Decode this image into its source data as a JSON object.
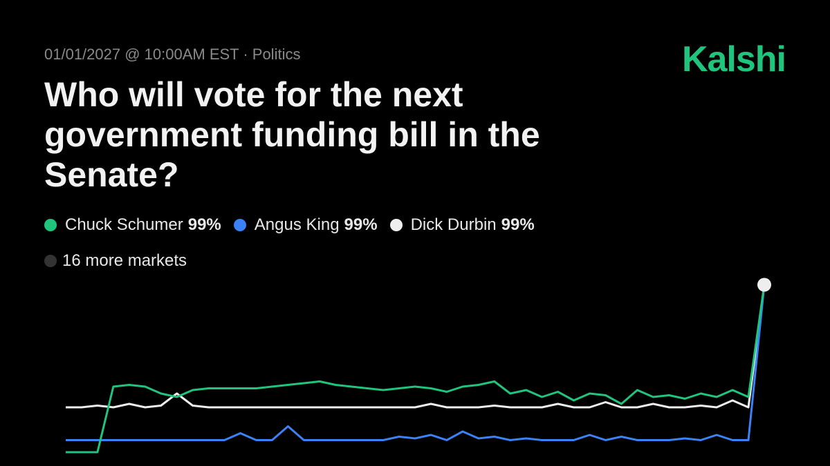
{
  "header": {
    "meta": "01/01/2027 @ 10:00AM EST · Politics",
    "logo": "Kalshi"
  },
  "chart_data": {
    "type": "line",
    "title": "Who will vote for the next government funding bill in the Senate?",
    "ylim": [
      0,
      100
    ],
    "series": [
      {
        "name": "Chuck Schumer",
        "color": "#20c47c",
        "values": [
          2,
          2,
          2,
          40,
          41,
          40,
          36,
          34,
          38,
          39,
          39,
          39,
          39,
          40,
          41,
          42,
          43,
          41,
          40,
          39,
          38,
          39,
          40,
          39,
          37,
          40,
          41,
          43,
          36,
          38,
          34,
          37,
          32,
          36,
          35,
          30,
          38,
          34,
          35,
          33,
          36,
          34,
          38,
          34,
          99
        ],
        "value_labels": [
          null,
          null,
          null,
          null,
          null,
          null,
          null,
          null,
          null,
          null,
          null,
          null,
          null,
          null,
          null,
          null,
          null,
          null,
          null,
          null,
          null,
          null,
          null,
          null,
          null,
          null,
          null,
          null,
          null,
          null,
          null,
          null,
          null,
          null,
          null,
          null,
          null,
          null,
          null,
          null,
          null,
          null,
          null,
          null,
          "99%"
        ]
      },
      {
        "name": "Angus King",
        "color": "#3b82f6",
        "values": [
          9,
          9,
          9,
          9,
          9,
          9,
          9,
          9,
          9,
          9,
          9,
          13,
          9,
          9,
          17,
          9,
          9,
          9,
          9,
          9,
          9,
          11,
          10,
          12,
          9,
          14,
          10,
          11,
          9,
          10,
          9,
          9,
          9,
          12,
          9,
          11,
          9,
          9,
          9,
          10,
          9,
          12,
          9,
          9,
          99
        ],
        "value_labels": [
          null,
          null,
          null,
          null,
          null,
          null,
          null,
          null,
          null,
          null,
          null,
          null,
          null,
          null,
          null,
          null,
          null,
          null,
          null,
          null,
          null,
          null,
          null,
          null,
          null,
          null,
          null,
          null,
          null,
          null,
          null,
          null,
          null,
          null,
          null,
          null,
          null,
          null,
          null,
          null,
          null,
          null,
          null,
          null,
          "99%"
        ]
      },
      {
        "name": "Dick Durbin",
        "color": "#eeeeee",
        "values": [
          28,
          28,
          29,
          28,
          30,
          28,
          29,
          36,
          29,
          28,
          28,
          28,
          28,
          28,
          28,
          28,
          28,
          28,
          28,
          28,
          28,
          28,
          28,
          30,
          28,
          28,
          28,
          29,
          28,
          28,
          28,
          30,
          28,
          28,
          31,
          28,
          28,
          30,
          28,
          28,
          29,
          28,
          32,
          28,
          99
        ],
        "value_labels": [
          null,
          null,
          null,
          null,
          null,
          null,
          null,
          null,
          null,
          null,
          null,
          null,
          null,
          null,
          null,
          null,
          null,
          null,
          null,
          null,
          null,
          null,
          null,
          null,
          null,
          null,
          null,
          null,
          null,
          null,
          null,
          null,
          null,
          null,
          null,
          null,
          null,
          null,
          null,
          null,
          null,
          null,
          null,
          null,
          "99%"
        ]
      }
    ],
    "more": "16 more markets"
  }
}
